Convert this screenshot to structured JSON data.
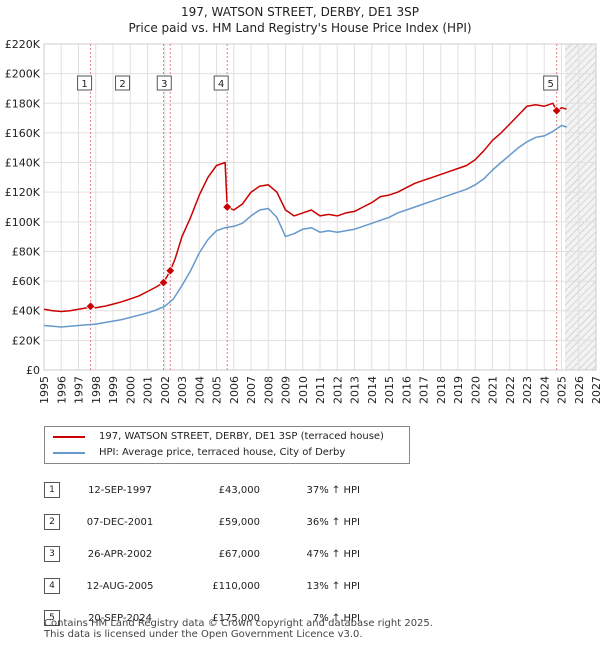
{
  "chart_data": {
    "type": "line",
    "title": "197, WATSON STREET, DERBY, DE1 3SP",
    "subtitle": "Price paid vs. HM Land Registry's House Price Index (HPI)",
    "xlim": [
      1995,
      2027
    ],
    "ylim": [
      0,
      220000
    ],
    "x_ticks": [
      "1995",
      "1996",
      "1997",
      "1998",
      "1999",
      "2000",
      "2001",
      "2002",
      "2003",
      "2004",
      "2005",
      "2006",
      "2007",
      "2008",
      "2009",
      "2010",
      "2011",
      "2012",
      "2013",
      "2014",
      "2015",
      "2016",
      "2017",
      "2018",
      "2019",
      "2020",
      "2021",
      "2022",
      "2023",
      "2024",
      "2025",
      "2026",
      "2027"
    ],
    "y_ticks": [
      {
        "value": 0,
        "label": "£0"
      },
      {
        "value": 20000,
        "label": "£20K"
      },
      {
        "value": 40000,
        "label": "£40K"
      },
      {
        "value": 60000,
        "label": "£60K"
      },
      {
        "value": 80000,
        "label": "£80K"
      },
      {
        "value": 100000,
        "label": "£100K"
      },
      {
        "value": 120000,
        "label": "£120K"
      },
      {
        "value": 140000,
        "label": "£140K"
      },
      {
        "value": 160000,
        "label": "£160K"
      },
      {
        "value": 180000,
        "label": "£180K"
      },
      {
        "value": 200000,
        "label": "£200K"
      },
      {
        "value": 220000,
        "label": "£220K"
      }
    ],
    "forecast_start": 2025.2,
    "series": [
      {
        "name": "197, WATSON STREET, DERBY, DE1 3SP (terraced house)",
        "color": "#cc0000",
        "points": [
          [
            1995.0,
            41000
          ],
          [
            1995.5,
            40000
          ],
          [
            1996.0,
            39500
          ],
          [
            1996.5,
            40000
          ],
          [
            1997.0,
            41000
          ],
          [
            1997.5,
            42000
          ],
          [
            1997.7,
            43000
          ],
          [
            1998.0,
            42000
          ],
          [
            1998.5,
            43000
          ],
          [
            1999.0,
            44500
          ],
          [
            1999.5,
            46000
          ],
          [
            2000.0,
            48000
          ],
          [
            2000.5,
            50000
          ],
          [
            2001.0,
            53000
          ],
          [
            2001.5,
            56000
          ],
          [
            2001.93,
            59000
          ],
          [
            2002.32,
            67000
          ],
          [
            2002.6,
            75000
          ],
          [
            2003.0,
            90000
          ],
          [
            2003.5,
            103000
          ],
          [
            2004.0,
            118000
          ],
          [
            2004.5,
            130000
          ],
          [
            2005.0,
            138000
          ],
          [
            2005.5,
            140000
          ],
          [
            2005.62,
            110000
          ],
          [
            2006.0,
            108000
          ],
          [
            2006.5,
            112000
          ],
          [
            2007.0,
            120000
          ],
          [
            2007.5,
            124000
          ],
          [
            2008.0,
            125000
          ],
          [
            2008.5,
            120000
          ],
          [
            2009.0,
            108000
          ],
          [
            2009.5,
            104000
          ],
          [
            2010.0,
            106000
          ],
          [
            2010.5,
            108000
          ],
          [
            2011.0,
            104000
          ],
          [
            2011.5,
            105000
          ],
          [
            2012.0,
            104000
          ],
          [
            2012.5,
            106000
          ],
          [
            2013.0,
            107000
          ],
          [
            2013.5,
            110000
          ],
          [
            2014.0,
            113000
          ],
          [
            2014.5,
            117000
          ],
          [
            2015.0,
            118000
          ],
          [
            2015.5,
            120000
          ],
          [
            2016.0,
            123000
          ],
          [
            2016.5,
            126000
          ],
          [
            2017.0,
            128000
          ],
          [
            2017.5,
            130000
          ],
          [
            2018.0,
            132000
          ],
          [
            2018.5,
            134000
          ],
          [
            2019.0,
            136000
          ],
          [
            2019.5,
            138000
          ],
          [
            2020.0,
            142000
          ],
          [
            2020.5,
            148000
          ],
          [
            2021.0,
            155000
          ],
          [
            2021.5,
            160000
          ],
          [
            2022.0,
            166000
          ],
          [
            2022.5,
            172000
          ],
          [
            2023.0,
            178000
          ],
          [
            2023.5,
            179000
          ],
          [
            2024.0,
            178000
          ],
          [
            2024.5,
            180000
          ],
          [
            2024.72,
            175000
          ],
          [
            2025.0,
            177000
          ],
          [
            2025.3,
            176000
          ]
        ]
      },
      {
        "name": "HPI: Average price, terraced house, City of Derby",
        "color": "#6699cc",
        "points": [
          [
            1995.0,
            30000
          ],
          [
            1995.5,
            29500
          ],
          [
            1996.0,
            29000
          ],
          [
            1996.5,
            29500
          ],
          [
            1997.0,
            30000
          ],
          [
            1997.5,
            30500
          ],
          [
            1998.0,
            31000
          ],
          [
            1998.5,
            32000
          ],
          [
            1999.0,
            33000
          ],
          [
            1999.5,
            34000
          ],
          [
            2000.0,
            35500
          ],
          [
            2000.5,
            37000
          ],
          [
            2001.0,
            38500
          ],
          [
            2001.5,
            40500
          ],
          [
            2002.0,
            43000
          ],
          [
            2002.5,
            48000
          ],
          [
            2003.0,
            57000
          ],
          [
            2003.5,
            67000
          ],
          [
            2004.0,
            79000
          ],
          [
            2004.5,
            88000
          ],
          [
            2005.0,
            94000
          ],
          [
            2005.5,
            96000
          ],
          [
            2006.0,
            97000
          ],
          [
            2006.5,
            99000
          ],
          [
            2007.0,
            104000
          ],
          [
            2007.5,
            108000
          ],
          [
            2008.0,
            109000
          ],
          [
            2008.5,
            103000
          ],
          [
            2009.0,
            90000
          ],
          [
            2009.5,
            92000
          ],
          [
            2010.0,
            95000
          ],
          [
            2010.5,
            96000
          ],
          [
            2011.0,
            93000
          ],
          [
            2011.5,
            94000
          ],
          [
            2012.0,
            93000
          ],
          [
            2012.5,
            94000
          ],
          [
            2013.0,
            95000
          ],
          [
            2013.5,
            97000
          ],
          [
            2014.0,
            99000
          ],
          [
            2014.5,
            101000
          ],
          [
            2015.0,
            103000
          ],
          [
            2015.5,
            106000
          ],
          [
            2016.0,
            108000
          ],
          [
            2016.5,
            110000
          ],
          [
            2017.0,
            112000
          ],
          [
            2017.5,
            114000
          ],
          [
            2018.0,
            116000
          ],
          [
            2018.5,
            118000
          ],
          [
            2019.0,
            120000
          ],
          [
            2019.5,
            122000
          ],
          [
            2020.0,
            125000
          ],
          [
            2020.5,
            129000
          ],
          [
            2021.0,
            135000
          ],
          [
            2021.5,
            140000
          ],
          [
            2022.0,
            145000
          ],
          [
            2022.5,
            150000
          ],
          [
            2023.0,
            154000
          ],
          [
            2023.5,
            157000
          ],
          [
            2024.0,
            158000
          ],
          [
            2024.5,
            161000
          ],
          [
            2025.0,
            165000
          ],
          [
            2025.3,
            164000
          ]
        ]
      }
    ],
    "sales": [
      {
        "n": "1",
        "x": 1997.7,
        "y": 43000
      },
      {
        "n": "2",
        "x": 2001.93,
        "y": 59000
      },
      {
        "n": "3",
        "x": 2002.32,
        "y": 67000
      },
      {
        "n": "4",
        "x": 2005.62,
        "y": 110000
      },
      {
        "n": "5",
        "x": 2024.72,
        "y": 175000
      }
    ],
    "annotations": [
      {
        "label": "1",
        "x": 1997.7
      },
      {
        "label": "2",
        "x": 1999.9
      },
      {
        "label": "3",
        "x": 2002.32
      },
      {
        "label": "4",
        "x": 2005.62
      },
      {
        "label": "5",
        "x": 2024.72
      }
    ]
  },
  "legend": {
    "property_label": "197, WATSON STREET, DERBY, DE1 3SP (terraced house)",
    "hpi_label": "HPI: Average price, terraced house, City of Derby"
  },
  "table": [
    {
      "n": "1",
      "date": "12-SEP-1997",
      "price": "£43,000",
      "hpi": "37% ↑ HPI"
    },
    {
      "n": "2",
      "date": "07-DEC-2001",
      "price": "£59,000",
      "hpi": "36% ↑ HPI"
    },
    {
      "n": "3",
      "date": "26-APR-2002",
      "price": "£67,000",
      "hpi": "47% ↑ HPI"
    },
    {
      "n": "4",
      "date": "12-AUG-2005",
      "price": "£110,000",
      "hpi": "13% ↑ HPI"
    },
    {
      "n": "5",
      "date": "20-SEP-2024",
      "price": "£175,000",
      "hpi": "7% ↑ HPI"
    }
  ],
  "footer": {
    "line1": "Contains HM Land Registry data © Crown copyright and database right 2025.",
    "line2": "This data is licensed under the Open Government Licence v3.0."
  },
  "colors": {
    "property": "#cc0000",
    "hpi": "#6699cc",
    "grid": "#e0e0e0",
    "plot_bg": "#ffffff"
  }
}
